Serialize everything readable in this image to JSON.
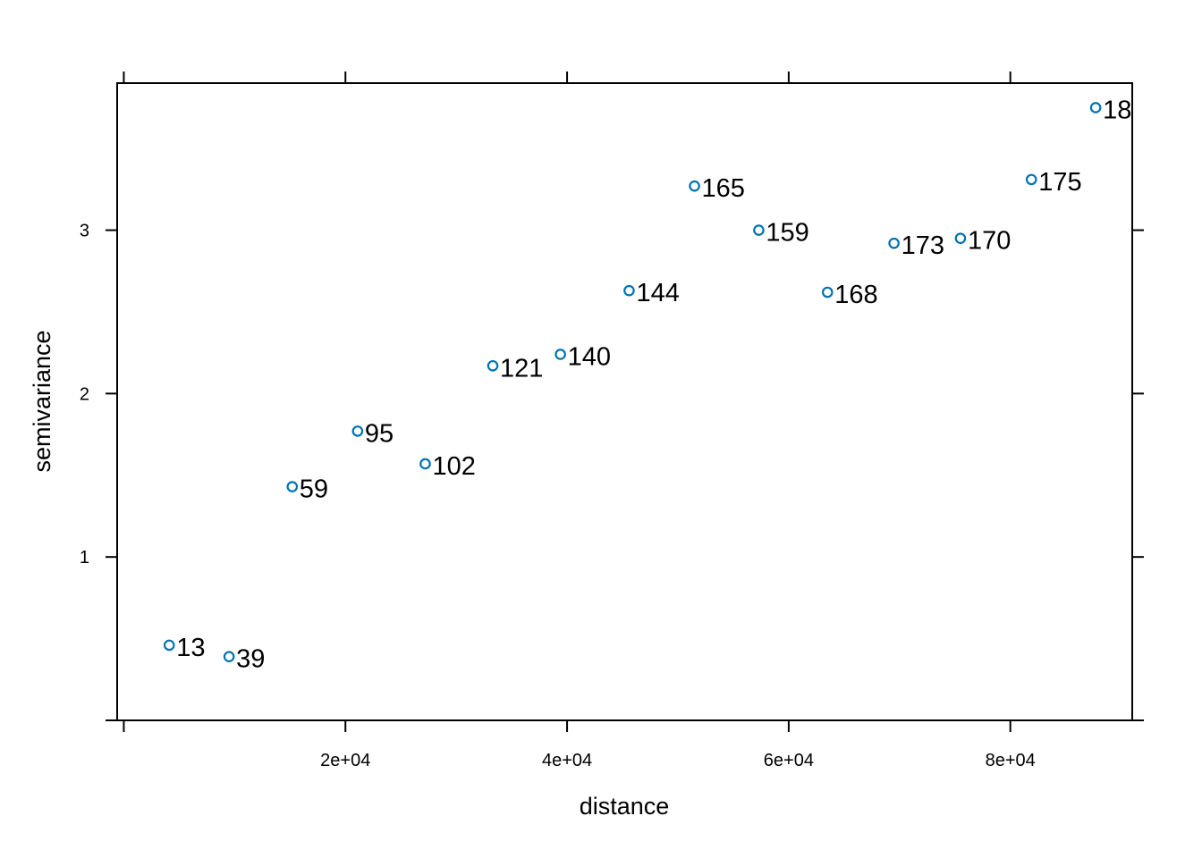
{
  "chart_data": {
    "type": "scatter",
    "xlabel": "distance",
    "ylabel": "semivariance",
    "xlim": [
      -600,
      91000
    ],
    "ylim": [
      0,
      3.9
    ],
    "x_ticks": [
      {
        "value": 0,
        "label": ""
      },
      {
        "value": 20000,
        "label": "2e+04"
      },
      {
        "value": 40000,
        "label": "4e+04"
      },
      {
        "value": 60000,
        "label": "6e+04"
      },
      {
        "value": 80000,
        "label": "8e+04"
      }
    ],
    "y_ticks": [
      {
        "value": 0,
        "label": ""
      },
      {
        "value": 1,
        "label": "1"
      },
      {
        "value": 2,
        "label": "2"
      },
      {
        "value": 3,
        "label": "3"
      }
    ],
    "point_color": "#0072B2",
    "grid": false,
    "points": [
      {
        "x": 4100,
        "y": 0.46,
        "label": "13"
      },
      {
        "x": 9500,
        "y": 0.39,
        "label": "39"
      },
      {
        "x": 15200,
        "y": 1.43,
        "label": "59"
      },
      {
        "x": 21100,
        "y": 1.77,
        "label": "95"
      },
      {
        "x": 27200,
        "y": 1.57,
        "label": "102"
      },
      {
        "x": 33300,
        "y": 2.17,
        "label": "121"
      },
      {
        "x": 39400,
        "y": 2.24,
        "label": "140"
      },
      {
        "x": 45600,
        "y": 2.63,
        "label": "144"
      },
      {
        "x": 51500,
        "y": 3.27,
        "label": "165"
      },
      {
        "x": 57300,
        "y": 3.0,
        "label": "159"
      },
      {
        "x": 63500,
        "y": 2.62,
        "label": "168"
      },
      {
        "x": 69500,
        "y": 2.92,
        "label": "173"
      },
      {
        "x": 75500,
        "y": 2.95,
        "label": "170"
      },
      {
        "x": 81900,
        "y": 3.31,
        "label": "175"
      },
      {
        "x": 87700,
        "y": 3.75,
        "label": "18"
      }
    ]
  }
}
